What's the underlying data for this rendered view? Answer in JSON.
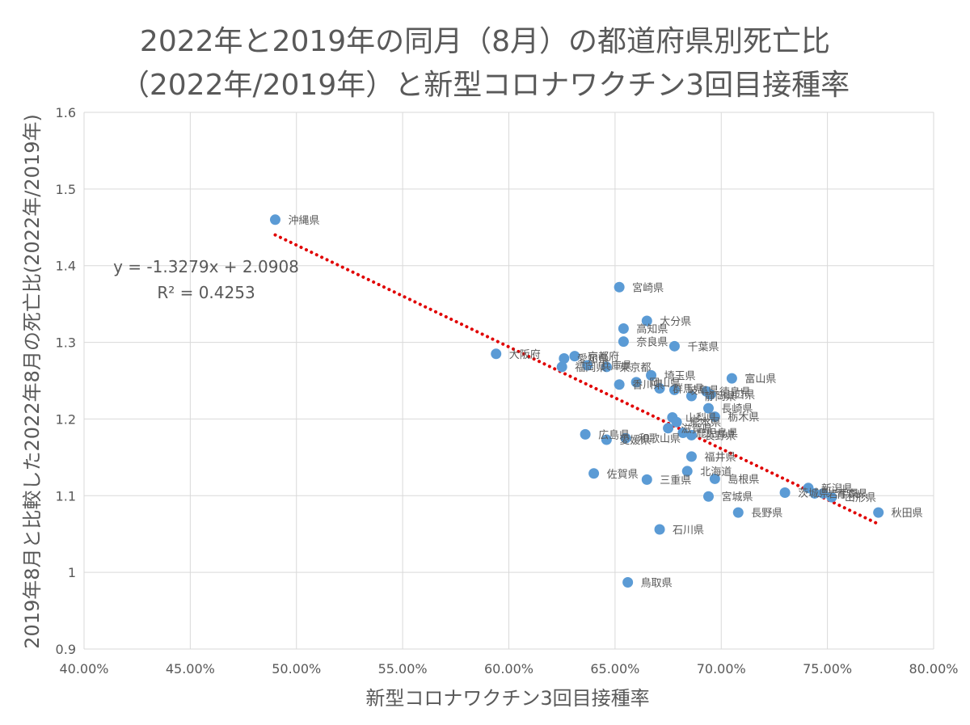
{
  "chart_data": {
    "type": "scatter",
    "title_line1": "2022年と2019年の同月（8月）の都道府県別死亡比",
    "title_line2": "（2022年/2019年）と新型コロナワクチン3回目接種率",
    "xlabel": "新型コロナワクチン3回目接種率",
    "ylabel": "2019年8月と比較した2022年8月の死亡比(2022年/2019年)",
    "xlim": [
      0.4,
      0.8
    ],
    "ylim": [
      0.9,
      1.6
    ],
    "x_ticks": [
      0.4,
      0.45,
      0.5,
      0.55,
      0.6,
      0.65,
      0.7,
      0.75,
      0.8
    ],
    "x_tick_labels": [
      "40.00%",
      "45.00%",
      "50.00%",
      "55.00%",
      "60.00%",
      "65.00%",
      "70.00%",
      "75.00%",
      "80.00%"
    ],
    "y_ticks": [
      0.9,
      1.0,
      1.1,
      1.2,
      1.3,
      1.4,
      1.5,
      1.6
    ],
    "y_tick_labels": [
      "0.9",
      "1",
      "1.1",
      "1.2",
      "1.3",
      "1.4",
      "1.5",
      "1.6"
    ],
    "grid": true,
    "marker_color": "#5B9BD5",
    "trendline": {
      "slope": -1.3279,
      "intercept": 2.0908,
      "x_range": [
        0.49,
        0.773
      ],
      "color": "#E00000",
      "equation_text": "y = -1.3279x + 2.0908",
      "r2_text": "R² = 0.4253"
    },
    "points": [
      {
        "label": "沖縄県",
        "x": 0.49,
        "y": 1.46
      },
      {
        "label": "宮崎県",
        "x": 0.652,
        "y": 1.372
      },
      {
        "label": "大分県",
        "x": 0.665,
        "y": 1.328
      },
      {
        "label": "高知県",
        "x": 0.654,
        "y": 1.318
      },
      {
        "label": "奈良県",
        "x": 0.654,
        "y": 1.301
      },
      {
        "label": "千葉県",
        "x": 0.678,
        "y": 1.295
      },
      {
        "label": "大阪府",
        "x": 0.594,
        "y": 1.285
      },
      {
        "label": "愛知県",
        "x": 0.626,
        "y": 1.279
      },
      {
        "label": "京都府",
        "x": 0.631,
        "y": 1.282
      },
      {
        "label": "福岡県",
        "x": 0.625,
        "y": 1.268
      },
      {
        "label": "兵庫県",
        "x": 0.637,
        "y": 1.27
      },
      {
        "label": "東京都",
        "x": 0.646,
        "y": 1.268
      },
      {
        "label": "埼玉県",
        "x": 0.667,
        "y": 1.257
      },
      {
        "label": "富山県",
        "x": 0.705,
        "y": 1.253
      },
      {
        "label": "香川県",
        "x": 0.652,
        "y": 1.245
      },
      {
        "label": "岡山県",
        "x": 0.66,
        "y": 1.248
      },
      {
        "label": "群馬県",
        "x": 0.671,
        "y": 1.24
      },
      {
        "label": "岐阜県",
        "x": 0.678,
        "y": 1.238
      },
      {
        "label": "静岡県",
        "x": 0.686,
        "y": 1.23
      },
      {
        "label": "徳島県",
        "x": 0.693,
        "y": 1.236
      },
      {
        "label": "山口県",
        "x": 0.695,
        "y": 1.232
      },
      {
        "label": "長崎県",
        "x": 0.694,
        "y": 1.214
      },
      {
        "label": "栃木県",
        "x": 0.697,
        "y": 1.203
      },
      {
        "label": "山梨県",
        "x": 0.677,
        "y": 1.202
      },
      {
        "label": "熊本県",
        "x": 0.679,
        "y": 1.196
      },
      {
        "label": "滋賀県",
        "x": 0.675,
        "y": 1.188
      },
      {
        "label": "鹿児島県",
        "x": 0.682,
        "y": 1.182
      },
      {
        "label": "長野県",
        "x": 0.686,
        "y": 1.179
      },
      {
        "label": "広島県",
        "x": 0.636,
        "y": 1.18
      },
      {
        "label": "和歌山県",
        "x": 0.655,
        "y": 1.175
      },
      {
        "label": "愛媛県",
        "x": 0.646,
        "y": 1.173
      },
      {
        "label": "福井県",
        "x": 0.686,
        "y": 1.151
      },
      {
        "label": "北海道",
        "x": 0.684,
        "y": 1.132
      },
      {
        "label": "佐賀県",
        "x": 0.64,
        "y": 1.129
      },
      {
        "label": "島根県",
        "x": 0.697,
        "y": 1.122
      },
      {
        "label": "三重県",
        "x": 0.665,
        "y": 1.121
      },
      {
        "label": "新潟県",
        "x": 0.741,
        "y": 1.11
      },
      {
        "label": "岩手県",
        "x": 0.744,
        "y": 1.103
      },
      {
        "label": "青森県",
        "x": 0.748,
        "y": 1.103
      },
      {
        "label": "茨城県",
        "x": 0.73,
        "y": 1.104
      },
      {
        "label": "山形県",
        "x": 0.752,
        "y": 1.098
      },
      {
        "label": "宮城県",
        "x": 0.694,
        "y": 1.099
      },
      {
        "label": "長野県",
        "x": 0.708,
        "y": 1.078
      },
      {
        "label": "秋田県",
        "x": 0.774,
        "y": 1.078
      },
      {
        "label": "石川県",
        "x": 0.671,
        "y": 1.056
      },
      {
        "label": "鳥取県",
        "x": 0.656,
        "y": 0.987
      }
    ]
  }
}
